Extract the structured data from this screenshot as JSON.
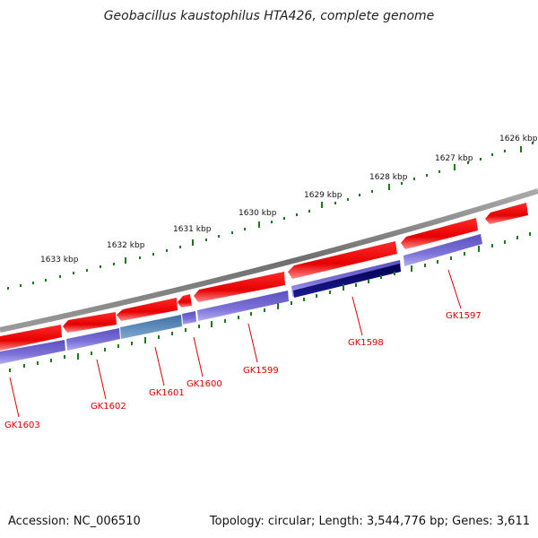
{
  "title": "Geobacillus kaustophilus HTA426, complete genome",
  "footer": {
    "accession": "Accession: NC_006510",
    "stats": "Topology: circular; Length: 3,544,776 bp; Genes: 3,611"
  },
  "kbp_labels": [
    "1626 kbp",
    "1627 kbp",
    "1628 kbp",
    "1629 kbp",
    "1630 kbp",
    "1631 kbp",
    "1632 kbp",
    "1633 kbp"
  ],
  "gene_labels": [
    "GK1597",
    "GK1598",
    "GK1599",
    "GK1600",
    "GK1601",
    "GK1602",
    "GK1603"
  ],
  "colors": {
    "backbone": "#7a7a7a",
    "forward_gene": "#ee1111",
    "cds": "#7a6fd6",
    "cds_highlight": "#00006e",
    "cds_alt": "#4a7fb5",
    "ticks": "#1a7a1a",
    "label": "#e00000"
  }
}
